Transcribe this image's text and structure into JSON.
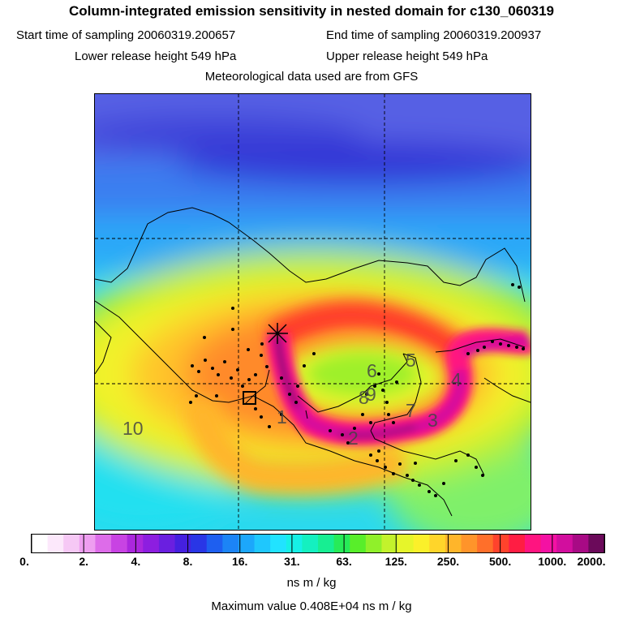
{
  "title": "Column-integrated emission sensitivity in nested domain for c130_060319",
  "start_label": "Start time of sampling 20060319.200657",
  "end_label": "End time of sampling 20060319.200937",
  "lower_label": "Lower release height  549 hPa",
  "upper_label": "Upper release height  549 hPa",
  "met_label": "Meteorological data used are from GFS",
  "trajectory_labels": [
    "10",
    "1",
    "2",
    "3",
    "4",
    "5",
    "6",
    "7",
    "8",
    "9"
  ],
  "colorbar": {
    "ticks": [
      "0.",
      "2.",
      "4.",
      "8.",
      "16.",
      "31.",
      "63.",
      "125.",
      "250.",
      "500.",
      "1000.",
      "2000."
    ],
    "colors": [
      "#ffffff",
      "#fce8fb",
      "#f6c8f5",
      "#ee9ef0",
      "#dd6ce9",
      "#c843e3",
      "#ab27dd",
      "#8d1ee0",
      "#6a1fe0",
      "#4520e0",
      "#2936e6",
      "#1e5ff0",
      "#1c84f6",
      "#1ca7fb",
      "#1fc7fd",
      "#21e3ff",
      "#16f0e6",
      "#14f0c0",
      "#17ee92",
      "#27eb58",
      "#58ee2a",
      "#90f02a",
      "#c3f22c",
      "#e6f52a",
      "#fbf02a",
      "#ffd52a",
      "#ffb52a",
      "#ff942a",
      "#ff6f2a",
      "#ff432c",
      "#ff1d43",
      "#ff1480",
      "#f411a3",
      "#d20e9e",
      "#a80a85",
      "#6b0a5a"
    ],
    "unit": "ns m / kg"
  },
  "max_value_label": "Maximum value  0.408E+04 ns m / kg"
}
